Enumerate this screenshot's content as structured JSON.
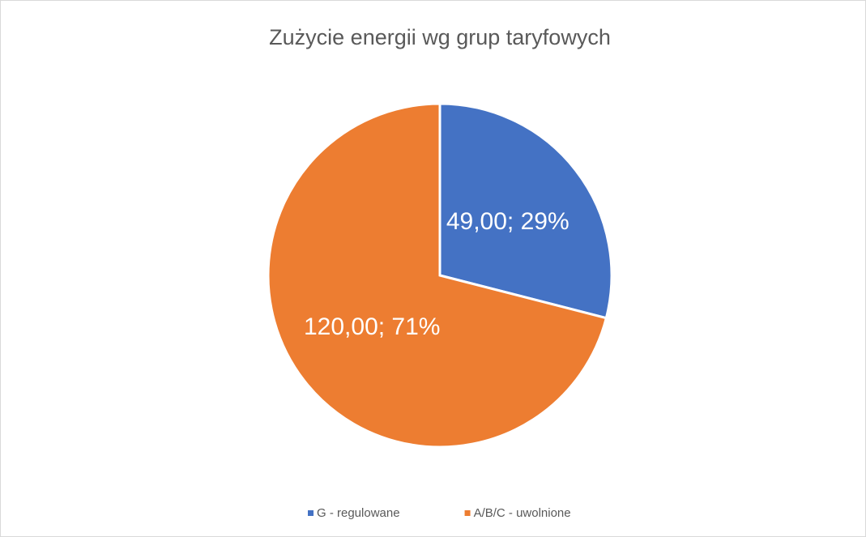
{
  "chart_data": {
    "type": "pie",
    "title": "Zużycie energii wg grup taryfowych",
    "categories": [
      "G - regulowane",
      "A/B/C - uwolnione"
    ],
    "values": [
      49,
      120
    ],
    "value_labels": [
      "49,00; 29%",
      "120,00; 71%"
    ],
    "colors": [
      "#4472c4",
      "#ed7d31"
    ],
    "legend": "bottom"
  }
}
